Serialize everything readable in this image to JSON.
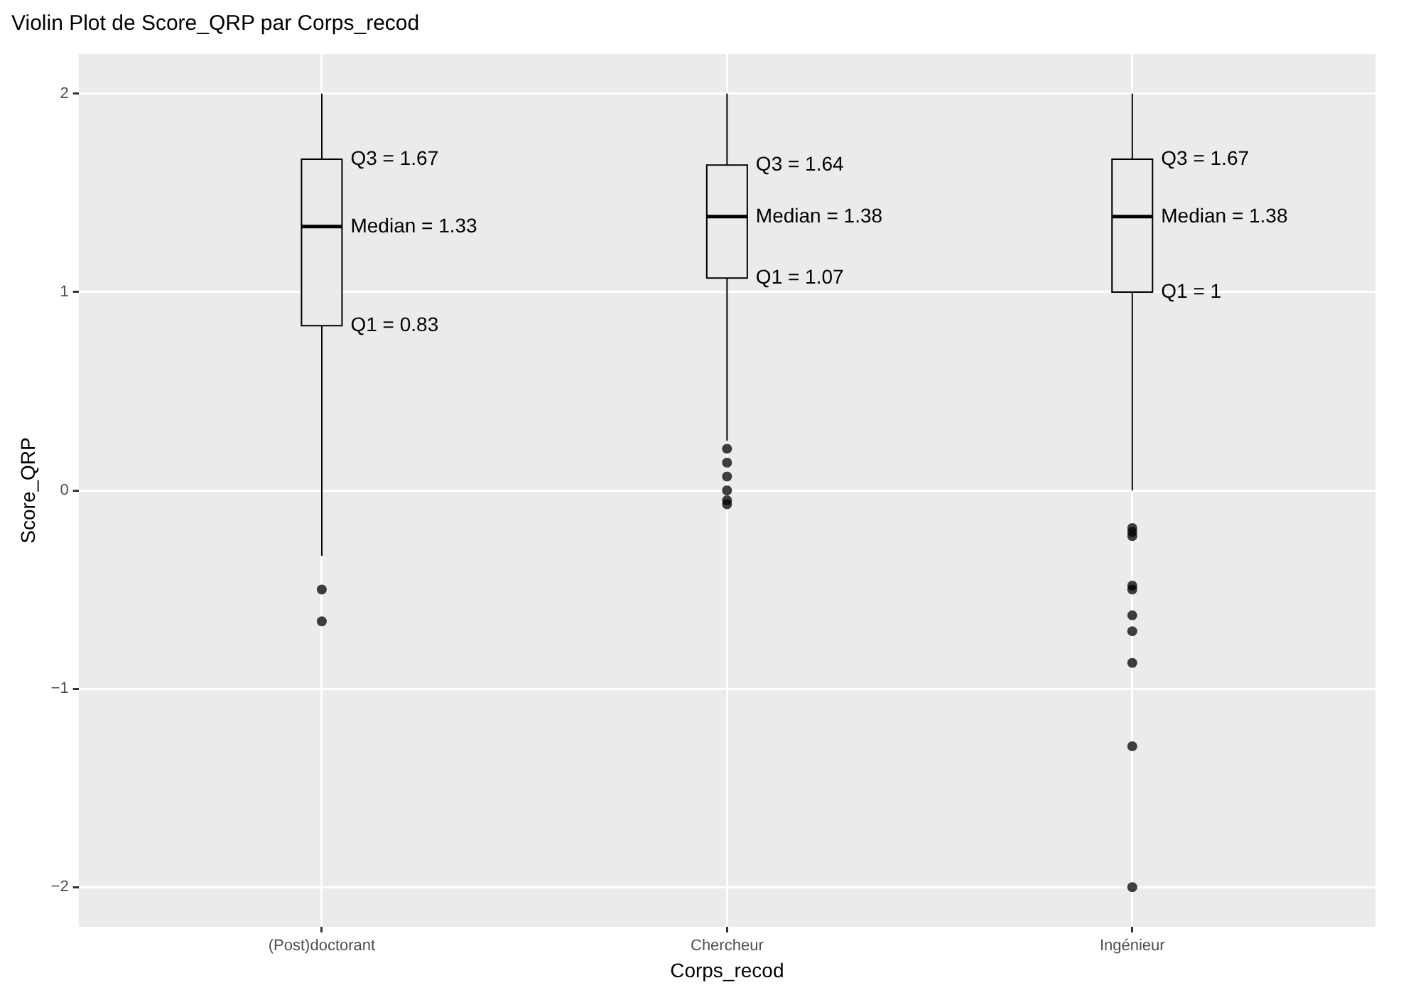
{
  "chart_data": {
    "type": "box",
    "title": "Violin Plot de Score_QRP par Corps_recod",
    "xlabel": "Corps_recod",
    "ylabel": "Score_QRP",
    "categories": [
      "(Post)doctorant",
      "Chercheur",
      "Ingénieur"
    ],
    "boxes": [
      {
        "low": -0.33,
        "q1": 0.83,
        "median": 1.33,
        "q3": 1.67,
        "high": 2,
        "outliers": [
          -0.5,
          -0.66
        ]
      },
      {
        "low": 0.25,
        "q1": 1.07,
        "median": 1.38,
        "q3": 1.64,
        "high": 2,
        "outliers": [
          0.21,
          0.14,
          0.07,
          0,
          -0.05,
          -0.07
        ]
      },
      {
        "low": 0,
        "q1": 1,
        "median": 1.38,
        "q3": 1.67,
        "high": 2,
        "outliers": [
          -0.19,
          -0.21,
          -0.23,
          -0.48,
          -0.5,
          -0.63,
          -0.71,
          -0.87,
          -1.29,
          -2
        ]
      }
    ],
    "color": "#ebebeb",
    "ylim": [
      -2.2,
      2.2
    ],
    "yticks": [
      -2,
      -1,
      0,
      1,
      2
    ],
    "grid": true,
    "marker": "circle",
    "legend": false,
    "annotations": [
      {
        "text": "Q3 = 1.67",
        "x": "(Post)doctorant",
        "y": 1.67
      },
      {
        "text": "Median = 1.33",
        "x": "(Post)doctorant",
        "y": 1.33
      },
      {
        "text": "Q1 = 0.83",
        "x": "(Post)doctorant",
        "y": 0.83
      },
      {
        "text": "Q3 = 1.64",
        "x": "Chercheur",
        "y": 1.64
      },
      {
        "text": "Median = 1.38",
        "x": "Chercheur",
        "y": 1.38
      },
      {
        "text": "Q1 = 1.07",
        "x": "Chercheur",
        "y": 1.07
      },
      {
        "text": "Q3 = 1.67",
        "x": "Ingénieur",
        "y": 1.67
      },
      {
        "text": "Median = 1.38",
        "x": "Ingénieur",
        "y": 1.38
      },
      {
        "text": "Q1 = 1",
        "x": "Ingénieur",
        "y": 1
      }
    ]
  }
}
